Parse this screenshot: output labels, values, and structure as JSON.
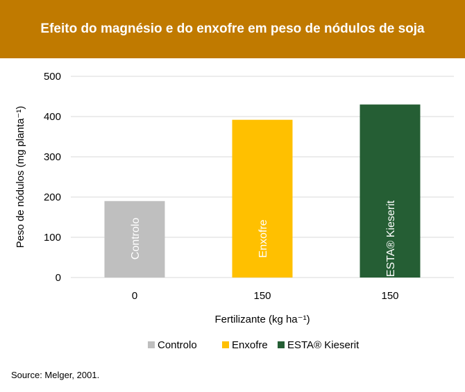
{
  "header": {
    "title": "Efeito do magnésio e do enxofre em peso de nódulos de soja"
  },
  "source": "Source: Melger, 2001.",
  "colors": {
    "header": "#c07a00",
    "controlo": "#bfbfbf",
    "enxofre": "#ffc000",
    "esta": "#255e34",
    "grid": "#d9d9d9"
  },
  "chart_data": {
    "type": "bar",
    "title": "Efeito do magnésio e do enxofre em peso de nódulos de soja",
    "categories": [
      "0",
      "150",
      "150"
    ],
    "values": [
      190,
      392,
      430
    ],
    "bar_labels": [
      "Controlo",
      "Enxofre",
      "ESTA® Kieserit"
    ],
    "series": [
      {
        "name": "Controlo",
        "color": "#bfbfbf"
      },
      {
        "name": "Enxofre",
        "color": "#ffc000"
      },
      {
        "name": "ESTA® Kieserit",
        "color": "#255e34"
      }
    ],
    "ylabel": "Peso de nódulos (mg planta⁻¹)",
    "xlabel": "Fertilizante (kg ha⁻¹)",
    "ylim": [
      0,
      500
    ],
    "yticks": [
      0,
      100,
      200,
      300,
      400,
      500
    ],
    "grid": true,
    "legend": "bottom"
  }
}
